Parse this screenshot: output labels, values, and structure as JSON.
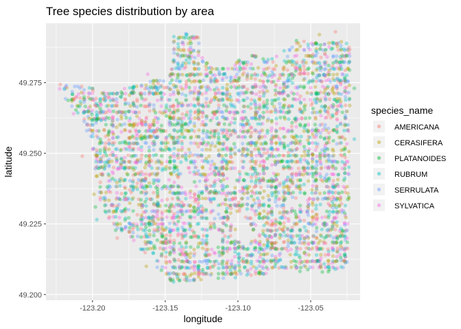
{
  "chart_data": {
    "type": "scatter",
    "title": "Tree species distribution by area",
    "xlabel": "longitude",
    "ylabel": "latitude",
    "xlim": [
      -123.232,
      -123.016
    ],
    "ylim": [
      49.198,
      49.296
    ],
    "x_ticks": [
      -123.2,
      -123.15,
      -123.1,
      -123.05
    ],
    "x_tick_labels": [
      "-123.20",
      "-123.15",
      "-123.10",
      "-123.05"
    ],
    "y_ticks": [
      49.2,
      49.225,
      49.25,
      49.275
    ],
    "y_tick_labels": [
      "49.200",
      "49.225",
      "49.250",
      "49.275"
    ],
    "grid": true,
    "legend_position": "right",
    "legend": {
      "title": "species_name",
      "entries": [
        "AMERICANA",
        "CERASIFERA",
        "PLATANOIDES",
        "RUBRUM",
        "SERRULATA",
        "SYLVATICA"
      ]
    },
    "colors": {
      "AMERICANA": "#F8766D",
      "CERASIFERA": "#B79F00",
      "PLATANOIDES": "#00BA38",
      "RUBRUM": "#00BFC4",
      "SERRULATA": "#619CFF",
      "SYLVATICA": "#F564E3"
    },
    "panel_background": "#EBEBEB",
    "point_alpha": 0.35,
    "region_polygon": [
      [
        -123.2225,
        49.2755
      ],
      [
        -123.215,
        49.2745
      ],
      [
        -123.2,
        49.273
      ],
      [
        -123.19,
        49.272
      ],
      [
        -123.175,
        49.2735
      ],
      [
        -123.158,
        49.276
      ],
      [
        -123.147,
        49.277
      ],
      [
        -123.144,
        49.293
      ],
      [
        -123.128,
        49.292
      ],
      [
        -123.124,
        49.285
      ],
      [
        -123.118,
        49.28
      ],
      [
        -123.105,
        49.28
      ],
      [
        -123.1,
        49.283
      ],
      [
        -123.09,
        49.286
      ],
      [
        -123.08,
        49.283
      ],
      [
        -123.07,
        49.286
      ],
      [
        -123.065,
        49.287
      ],
      [
        -123.06,
        49.29
      ],
      [
        -123.05,
        49.29
      ],
      [
        -123.023,
        49.29
      ],
      [
        -123.023,
        49.265
      ],
      [
        -123.0235,
        49.245
      ],
      [
        -123.0235,
        49.23
      ],
      [
        -123.024,
        49.215
      ],
      [
        -123.025,
        49.211
      ],
      [
        -123.03,
        49.208
      ],
      [
        -123.045,
        49.208
      ],
      [
        -123.07,
        49.208
      ],
      [
        -123.1,
        49.206
      ],
      [
        -123.13,
        49.205
      ],
      [
        -123.145,
        49.204
      ],
      [
        -123.15,
        49.207
      ],
      [
        -123.16,
        49.211
      ],
      [
        -123.17,
        49.218
      ],
      [
        -123.185,
        49.223
      ],
      [
        -123.19,
        49.228
      ],
      [
        -123.195,
        49.233
      ],
      [
        -123.197,
        49.24
      ],
      [
        -123.2,
        49.25
      ],
      [
        -123.202,
        49.258
      ],
      [
        -123.21,
        49.264
      ],
      [
        -123.22,
        49.27
      ],
      [
        -123.224,
        49.274
      ]
    ],
    "holes": [
      [
        [
          -123.121,
          49.223
        ],
        [
          -123.112,
          49.223
        ],
        [
          -123.112,
          49.215
        ],
        [
          -123.121,
          49.215
        ]
      ],
      [
        [
          -123.104,
          49.23
        ],
        [
          -123.092,
          49.23
        ],
        [
          -123.092,
          49.218
        ],
        [
          -123.104,
          49.218
        ]
      ],
      [
        [
          -123.138,
          49.243
        ],
        [
          -123.13,
          49.243
        ],
        [
          -123.13,
          49.237
        ],
        [
          -123.138,
          49.237
        ]
      ],
      [
        [
          -123.108,
          49.244
        ],
        [
          -123.101,
          49.244
        ],
        [
          -123.101,
          49.238
        ],
        [
          -123.108,
          49.238
        ]
      ],
      [
        [
          -123.155,
          49.264
        ],
        [
          -123.149,
          49.264
        ],
        [
          -123.149,
          49.26
        ],
        [
          -123.155,
          49.26
        ]
      ]
    ],
    "point_count": 4200,
    "stray_points": [
      [
        -123.207,
        49.249
      ],
      [
        -123.199,
        49.2355
      ],
      [
        -123.198,
        49.231
      ],
      [
        -123.197,
        49.2265
      ],
      [
        -123.204,
        49.258
      ],
      [
        -123.213,
        49.264
      ],
      [
        -123.183,
        49.22
      ],
      [
        -123.163,
        49.21
      ],
      [
        -123.042,
        49.208
      ],
      [
        -123.033,
        49.209
      ],
      [
        -123.048,
        49.225
      ],
      [
        -123.025,
        49.22
      ],
      [
        -123.033,
        49.293
      ],
      [
        -123.044,
        49.292
      ],
      [
        -123.02,
        49.273
      ],
      [
        -123.02,
        49.255
      ],
      [
        -123.218,
        49.274
      ],
      [
        -123.162,
        49.278
      ]
    ]
  }
}
